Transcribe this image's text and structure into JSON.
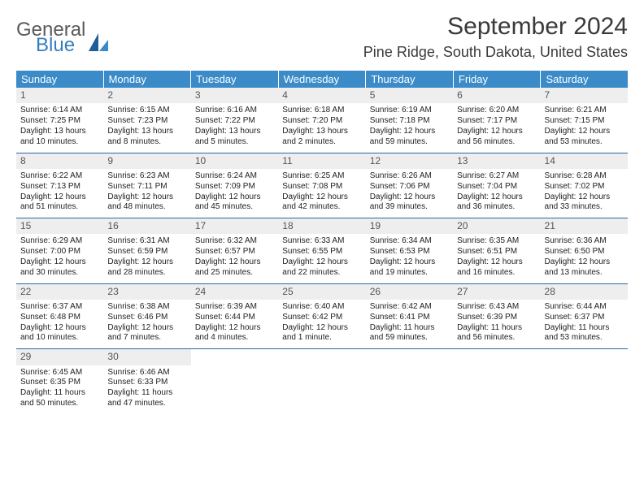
{
  "brand": {
    "general": "General",
    "blue": "Blue"
  },
  "title": "September 2024",
  "subtitle": "Pine Ridge, South Dakota, United States",
  "dow": [
    "Sunday",
    "Monday",
    "Tuesday",
    "Wednesday",
    "Thursday",
    "Friday",
    "Saturday"
  ],
  "colors": {
    "header_bg": "#3b8bc9",
    "header_text": "#ffffff",
    "daynum_bg": "#eeeeee",
    "border": "#2a6aa0",
    "logo_gray": "#5a5a5a",
    "logo_blue": "#367ebd"
  },
  "weeks": [
    [
      {
        "num": "1",
        "sunrise": "Sunrise: 6:14 AM",
        "sunset": "Sunset: 7:25 PM",
        "daylight": "Daylight: 13 hours and 10 minutes."
      },
      {
        "num": "2",
        "sunrise": "Sunrise: 6:15 AM",
        "sunset": "Sunset: 7:23 PM",
        "daylight": "Daylight: 13 hours and 8 minutes."
      },
      {
        "num": "3",
        "sunrise": "Sunrise: 6:16 AM",
        "sunset": "Sunset: 7:22 PM",
        "daylight": "Daylight: 13 hours and 5 minutes."
      },
      {
        "num": "4",
        "sunrise": "Sunrise: 6:18 AM",
        "sunset": "Sunset: 7:20 PM",
        "daylight": "Daylight: 13 hours and 2 minutes."
      },
      {
        "num": "5",
        "sunrise": "Sunrise: 6:19 AM",
        "sunset": "Sunset: 7:18 PM",
        "daylight": "Daylight: 12 hours and 59 minutes."
      },
      {
        "num": "6",
        "sunrise": "Sunrise: 6:20 AM",
        "sunset": "Sunset: 7:17 PM",
        "daylight": "Daylight: 12 hours and 56 minutes."
      },
      {
        "num": "7",
        "sunrise": "Sunrise: 6:21 AM",
        "sunset": "Sunset: 7:15 PM",
        "daylight": "Daylight: 12 hours and 53 minutes."
      }
    ],
    [
      {
        "num": "8",
        "sunrise": "Sunrise: 6:22 AM",
        "sunset": "Sunset: 7:13 PM",
        "daylight": "Daylight: 12 hours and 51 minutes."
      },
      {
        "num": "9",
        "sunrise": "Sunrise: 6:23 AM",
        "sunset": "Sunset: 7:11 PM",
        "daylight": "Daylight: 12 hours and 48 minutes."
      },
      {
        "num": "10",
        "sunrise": "Sunrise: 6:24 AM",
        "sunset": "Sunset: 7:09 PM",
        "daylight": "Daylight: 12 hours and 45 minutes."
      },
      {
        "num": "11",
        "sunrise": "Sunrise: 6:25 AM",
        "sunset": "Sunset: 7:08 PM",
        "daylight": "Daylight: 12 hours and 42 minutes."
      },
      {
        "num": "12",
        "sunrise": "Sunrise: 6:26 AM",
        "sunset": "Sunset: 7:06 PM",
        "daylight": "Daylight: 12 hours and 39 minutes."
      },
      {
        "num": "13",
        "sunrise": "Sunrise: 6:27 AM",
        "sunset": "Sunset: 7:04 PM",
        "daylight": "Daylight: 12 hours and 36 minutes."
      },
      {
        "num": "14",
        "sunrise": "Sunrise: 6:28 AM",
        "sunset": "Sunset: 7:02 PM",
        "daylight": "Daylight: 12 hours and 33 minutes."
      }
    ],
    [
      {
        "num": "15",
        "sunrise": "Sunrise: 6:29 AM",
        "sunset": "Sunset: 7:00 PM",
        "daylight": "Daylight: 12 hours and 30 minutes."
      },
      {
        "num": "16",
        "sunrise": "Sunrise: 6:31 AM",
        "sunset": "Sunset: 6:59 PM",
        "daylight": "Daylight: 12 hours and 28 minutes."
      },
      {
        "num": "17",
        "sunrise": "Sunrise: 6:32 AM",
        "sunset": "Sunset: 6:57 PM",
        "daylight": "Daylight: 12 hours and 25 minutes."
      },
      {
        "num": "18",
        "sunrise": "Sunrise: 6:33 AM",
        "sunset": "Sunset: 6:55 PM",
        "daylight": "Daylight: 12 hours and 22 minutes."
      },
      {
        "num": "19",
        "sunrise": "Sunrise: 6:34 AM",
        "sunset": "Sunset: 6:53 PM",
        "daylight": "Daylight: 12 hours and 19 minutes."
      },
      {
        "num": "20",
        "sunrise": "Sunrise: 6:35 AM",
        "sunset": "Sunset: 6:51 PM",
        "daylight": "Daylight: 12 hours and 16 minutes."
      },
      {
        "num": "21",
        "sunrise": "Sunrise: 6:36 AM",
        "sunset": "Sunset: 6:50 PM",
        "daylight": "Daylight: 12 hours and 13 minutes."
      }
    ],
    [
      {
        "num": "22",
        "sunrise": "Sunrise: 6:37 AM",
        "sunset": "Sunset: 6:48 PM",
        "daylight": "Daylight: 12 hours and 10 minutes."
      },
      {
        "num": "23",
        "sunrise": "Sunrise: 6:38 AM",
        "sunset": "Sunset: 6:46 PM",
        "daylight": "Daylight: 12 hours and 7 minutes."
      },
      {
        "num": "24",
        "sunrise": "Sunrise: 6:39 AM",
        "sunset": "Sunset: 6:44 PM",
        "daylight": "Daylight: 12 hours and 4 minutes."
      },
      {
        "num": "25",
        "sunrise": "Sunrise: 6:40 AM",
        "sunset": "Sunset: 6:42 PM",
        "daylight": "Daylight: 12 hours and 1 minute."
      },
      {
        "num": "26",
        "sunrise": "Sunrise: 6:42 AM",
        "sunset": "Sunset: 6:41 PM",
        "daylight": "Daylight: 11 hours and 59 minutes."
      },
      {
        "num": "27",
        "sunrise": "Sunrise: 6:43 AM",
        "sunset": "Sunset: 6:39 PM",
        "daylight": "Daylight: 11 hours and 56 minutes."
      },
      {
        "num": "28",
        "sunrise": "Sunrise: 6:44 AM",
        "sunset": "Sunset: 6:37 PM",
        "daylight": "Daylight: 11 hours and 53 minutes."
      }
    ],
    [
      {
        "num": "29",
        "sunrise": "Sunrise: 6:45 AM",
        "sunset": "Sunset: 6:35 PM",
        "daylight": "Daylight: 11 hours and 50 minutes."
      },
      {
        "num": "30",
        "sunrise": "Sunrise: 6:46 AM",
        "sunset": "Sunset: 6:33 PM",
        "daylight": "Daylight: 11 hours and 47 minutes."
      },
      null,
      null,
      null,
      null,
      null
    ]
  ]
}
